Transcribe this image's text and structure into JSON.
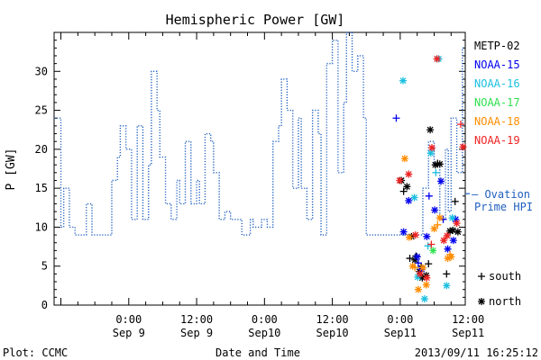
{
  "chart_data": {
    "type": "line+scatter",
    "title": "Hemispheric Power [GW]",
    "xlabel": "Date and Time",
    "ylabel": "P [GW]",
    "ylim": [
      0,
      35
    ],
    "yticks": [
      0,
      5,
      10,
      15,
      20,
      25,
      30
    ],
    "xlim_hours": [
      -13.2,
      59.5
    ],
    "xticks": [
      {
        "hour": 0,
        "time": "0:00",
        "date": "Sep 9"
      },
      {
        "hour": 12,
        "time": "12:00",
        "date": "Sep 9"
      },
      {
        "hour": 24,
        "time": "0:00",
        "date": "Sep10"
      },
      {
        "hour": 36,
        "time": "12:00",
        "date": "Sep10"
      },
      {
        "hour": 48,
        "time": "0:00",
        "date": "Sep11"
      },
      {
        "hour": 60,
        "time": "12:00",
        "date": "Sep11"
      }
    ],
    "footer": {
      "left": "Plot: CCMC",
      "right": "2013/09/11 16:25:12"
    },
    "ovation": {
      "name": "Ovation Prime HPI",
      "legend_line1": "— Ovation",
      "legend_line2": "Prime HPI",
      "color": "#1f5fbf",
      "steps": [
        [
          -13.2,
          24
        ],
        [
          -12.0,
          10
        ],
        [
          -11.5,
          15
        ],
        [
          -10.5,
          10
        ],
        [
          -9.5,
          9
        ],
        [
          -8.0,
          9
        ],
        [
          -7.5,
          13
        ],
        [
          -6.5,
          9
        ],
        [
          -5.0,
          9
        ],
        [
          -4.0,
          9
        ],
        [
          -3.0,
          16
        ],
        [
          -2.0,
          19
        ],
        [
          -1.5,
          23
        ],
        [
          -0.5,
          20
        ],
        [
          0.5,
          11
        ],
        [
          1.5,
          23
        ],
        [
          2.5,
          11
        ],
        [
          3.5,
          18
        ],
        [
          4.0,
          30
        ],
        [
          5.0,
          25
        ],
        [
          5.5,
          19
        ],
        [
          6.5,
          13
        ],
        [
          7.5,
          11
        ],
        [
          8.5,
          16
        ],
        [
          9.0,
          13
        ],
        [
          10.0,
          21
        ],
        [
          11.0,
          13
        ],
        [
          12.0,
          16
        ],
        [
          12.5,
          13
        ],
        [
          13.5,
          22
        ],
        [
          14.5,
          21
        ],
        [
          15.0,
          17
        ],
        [
          16.0,
          11
        ],
        [
          17.0,
          12
        ],
        [
          18.0,
          11
        ],
        [
          20.0,
          9
        ],
        [
          21.5,
          11
        ],
        [
          22.0,
          10
        ],
        [
          23.5,
          11
        ],
        [
          24.5,
          10
        ],
        [
          25.5,
          21
        ],
        [
          26.5,
          23
        ],
        [
          27.0,
          29
        ],
        [
          28.0,
          25
        ],
        [
          29.0,
          15
        ],
        [
          30.0,
          24
        ],
        [
          30.5,
          15
        ],
        [
          31.5,
          11
        ],
        [
          32.5,
          25
        ],
        [
          33.5,
          22
        ],
        [
          34.0,
          9
        ],
        [
          35.0,
          31
        ],
        [
          36.0,
          34
        ],
        [
          37.0,
          17
        ],
        [
          38.0,
          26
        ],
        [
          38.5,
          35
        ],
        [
          39.5,
          30
        ],
        [
          40.5,
          32
        ],
        [
          41.5,
          24
        ],
        [
          42.0,
          9
        ],
        [
          44.0,
          9
        ],
        [
          46.0,
          9
        ],
        [
          47.0,
          9
        ],
        [
          48.0,
          9
        ],
        [
          52.0,
          15
        ],
        [
          53.0,
          21
        ],
        [
          54.0,
          18
        ],
        [
          55.0,
          11
        ],
        [
          56.0,
          20
        ],
        [
          56.5,
          12
        ],
        [
          57.0,
          24
        ],
        [
          58.0,
          17
        ],
        [
          59.0,
          33
        ],
        [
          59.5,
          33
        ]
      ]
    },
    "satellites": [
      {
        "name": "METP-02",
        "color": "#000000",
        "points": [
          [
            48.2,
            16.0,
            "north"
          ],
          [
            49.2,
            15.2,
            "north"
          ],
          [
            50.0,
            8.8,
            "north"
          ],
          [
            50.6,
            5.8,
            "north"
          ],
          [
            51.4,
            4.3,
            "north"
          ],
          [
            51.9,
            3.5,
            "north"
          ],
          [
            52.6,
            3.8,
            "north"
          ],
          [
            53.3,
            22.5,
            "north"
          ],
          [
            54.2,
            18.0,
            "north"
          ],
          [
            55.0,
            18.1,
            "north"
          ],
          [
            57.3,
            9.6,
            "north"
          ],
          [
            58.2,
            9.4,
            "north"
          ],
          [
            56.8,
            9.5,
            "north"
          ],
          [
            48.6,
            14.6,
            "south"
          ],
          [
            49.7,
            6.0,
            "south"
          ],
          [
            50.8,
            6.3,
            "south"
          ],
          [
            51.7,
            5.0,
            "south"
          ],
          [
            53.0,
            5.3,
            "south"
          ],
          [
            54.6,
            18.2,
            "south"
          ],
          [
            56.2,
            4.0,
            "south"
          ],
          [
            57.7,
            13.3,
            "south"
          ]
        ]
      },
      {
        "name": "NOAA-15",
        "color": "#0000ee",
        "points": [
          [
            48.6,
            9.4,
            "north"
          ],
          [
            49.5,
            13.4,
            "north"
          ],
          [
            51.0,
            6.2,
            "north"
          ],
          [
            51.8,
            4.6,
            "north"
          ],
          [
            52.7,
            8.8,
            "north"
          ],
          [
            54.1,
            12.2,
            "north"
          ],
          [
            55.2,
            15.9,
            "north"
          ],
          [
            56.4,
            7.2,
            "north"
          ],
          [
            57.4,
            8.3,
            "north"
          ],
          [
            57.8,
            11.0,
            "north"
          ],
          [
            47.3,
            24.0,
            "south"
          ],
          [
            51.2,
            5.4,
            "south"
          ],
          [
            53.1,
            14.0,
            "south"
          ],
          [
            55.6,
            11.0,
            "south"
          ]
        ]
      },
      {
        "name": "NOAA-16",
        "color": "#1cc0e0",
        "points": [
          [
            48.5,
            28.8,
            "north"
          ],
          [
            50.5,
            13.8,
            "north"
          ],
          [
            51.1,
            3.6,
            "north"
          ],
          [
            52.3,
            0.8,
            "north"
          ],
          [
            53.4,
            19.5,
            "north"
          ],
          [
            54.8,
            31.6,
            "north"
          ],
          [
            56.2,
            2.5,
            "north"
          ],
          [
            57.2,
            11.2,
            "north"
          ],
          [
            52.9,
            7.6,
            "south"
          ],
          [
            54.3,
            17.0,
            "south"
          ]
        ]
      },
      {
        "name": "NOAA-17",
        "color": "#30e050",
        "points": [
          [
            53.8,
            7.0,
            "north"
          ]
        ]
      },
      {
        "name": "NOAA-18",
        "color": "#ff8c00",
        "points": [
          [
            48.8,
            18.8,
            "north"
          ],
          [
            50.2,
            5.0,
            "north"
          ],
          [
            51.2,
            2.0,
            "north"
          ],
          [
            52.0,
            4.8,
            "north"
          ],
          [
            52.6,
            2.6,
            "north"
          ],
          [
            54.0,
            9.8,
            "north"
          ],
          [
            55.0,
            11.2,
            "north"
          ],
          [
            56.4,
            6.0,
            "north"
          ],
          [
            57.0,
            6.2,
            "north"
          ],
          [
            49.6,
            8.7,
            "north"
          ],
          [
            50.6,
            4.8,
            "south"
          ],
          [
            54.6,
            10.3,
            "south"
          ],
          [
            56.8,
            6.5,
            "south"
          ]
        ]
      },
      {
        "name": "NOAA-19",
        "color": "#ee2222",
        "points": [
          [
            47.9,
            16.0,
            "north"
          ],
          [
            49.5,
            16.8,
            "north"
          ],
          [
            50.7,
            9.0,
            "north"
          ],
          [
            51.5,
            4.0,
            "north"
          ],
          [
            52.7,
            3.5,
            "north"
          ],
          [
            53.6,
            20.2,
            "north"
          ],
          [
            54.5,
            31.6,
            "north"
          ],
          [
            55.7,
            8.3,
            "north"
          ],
          [
            56.3,
            8.9,
            "north"
          ],
          [
            58.0,
            10.5,
            "north"
          ],
          [
            59.1,
            20.3,
            "north"
          ],
          [
            53.5,
            7.8,
            "south"
          ],
          [
            58.7,
            23.2,
            "south"
          ]
        ]
      }
    ],
    "marker_legend": [
      {
        "symbol": "+",
        "label": "south"
      },
      {
        "symbol": "*",
        "label": "north"
      }
    ]
  }
}
